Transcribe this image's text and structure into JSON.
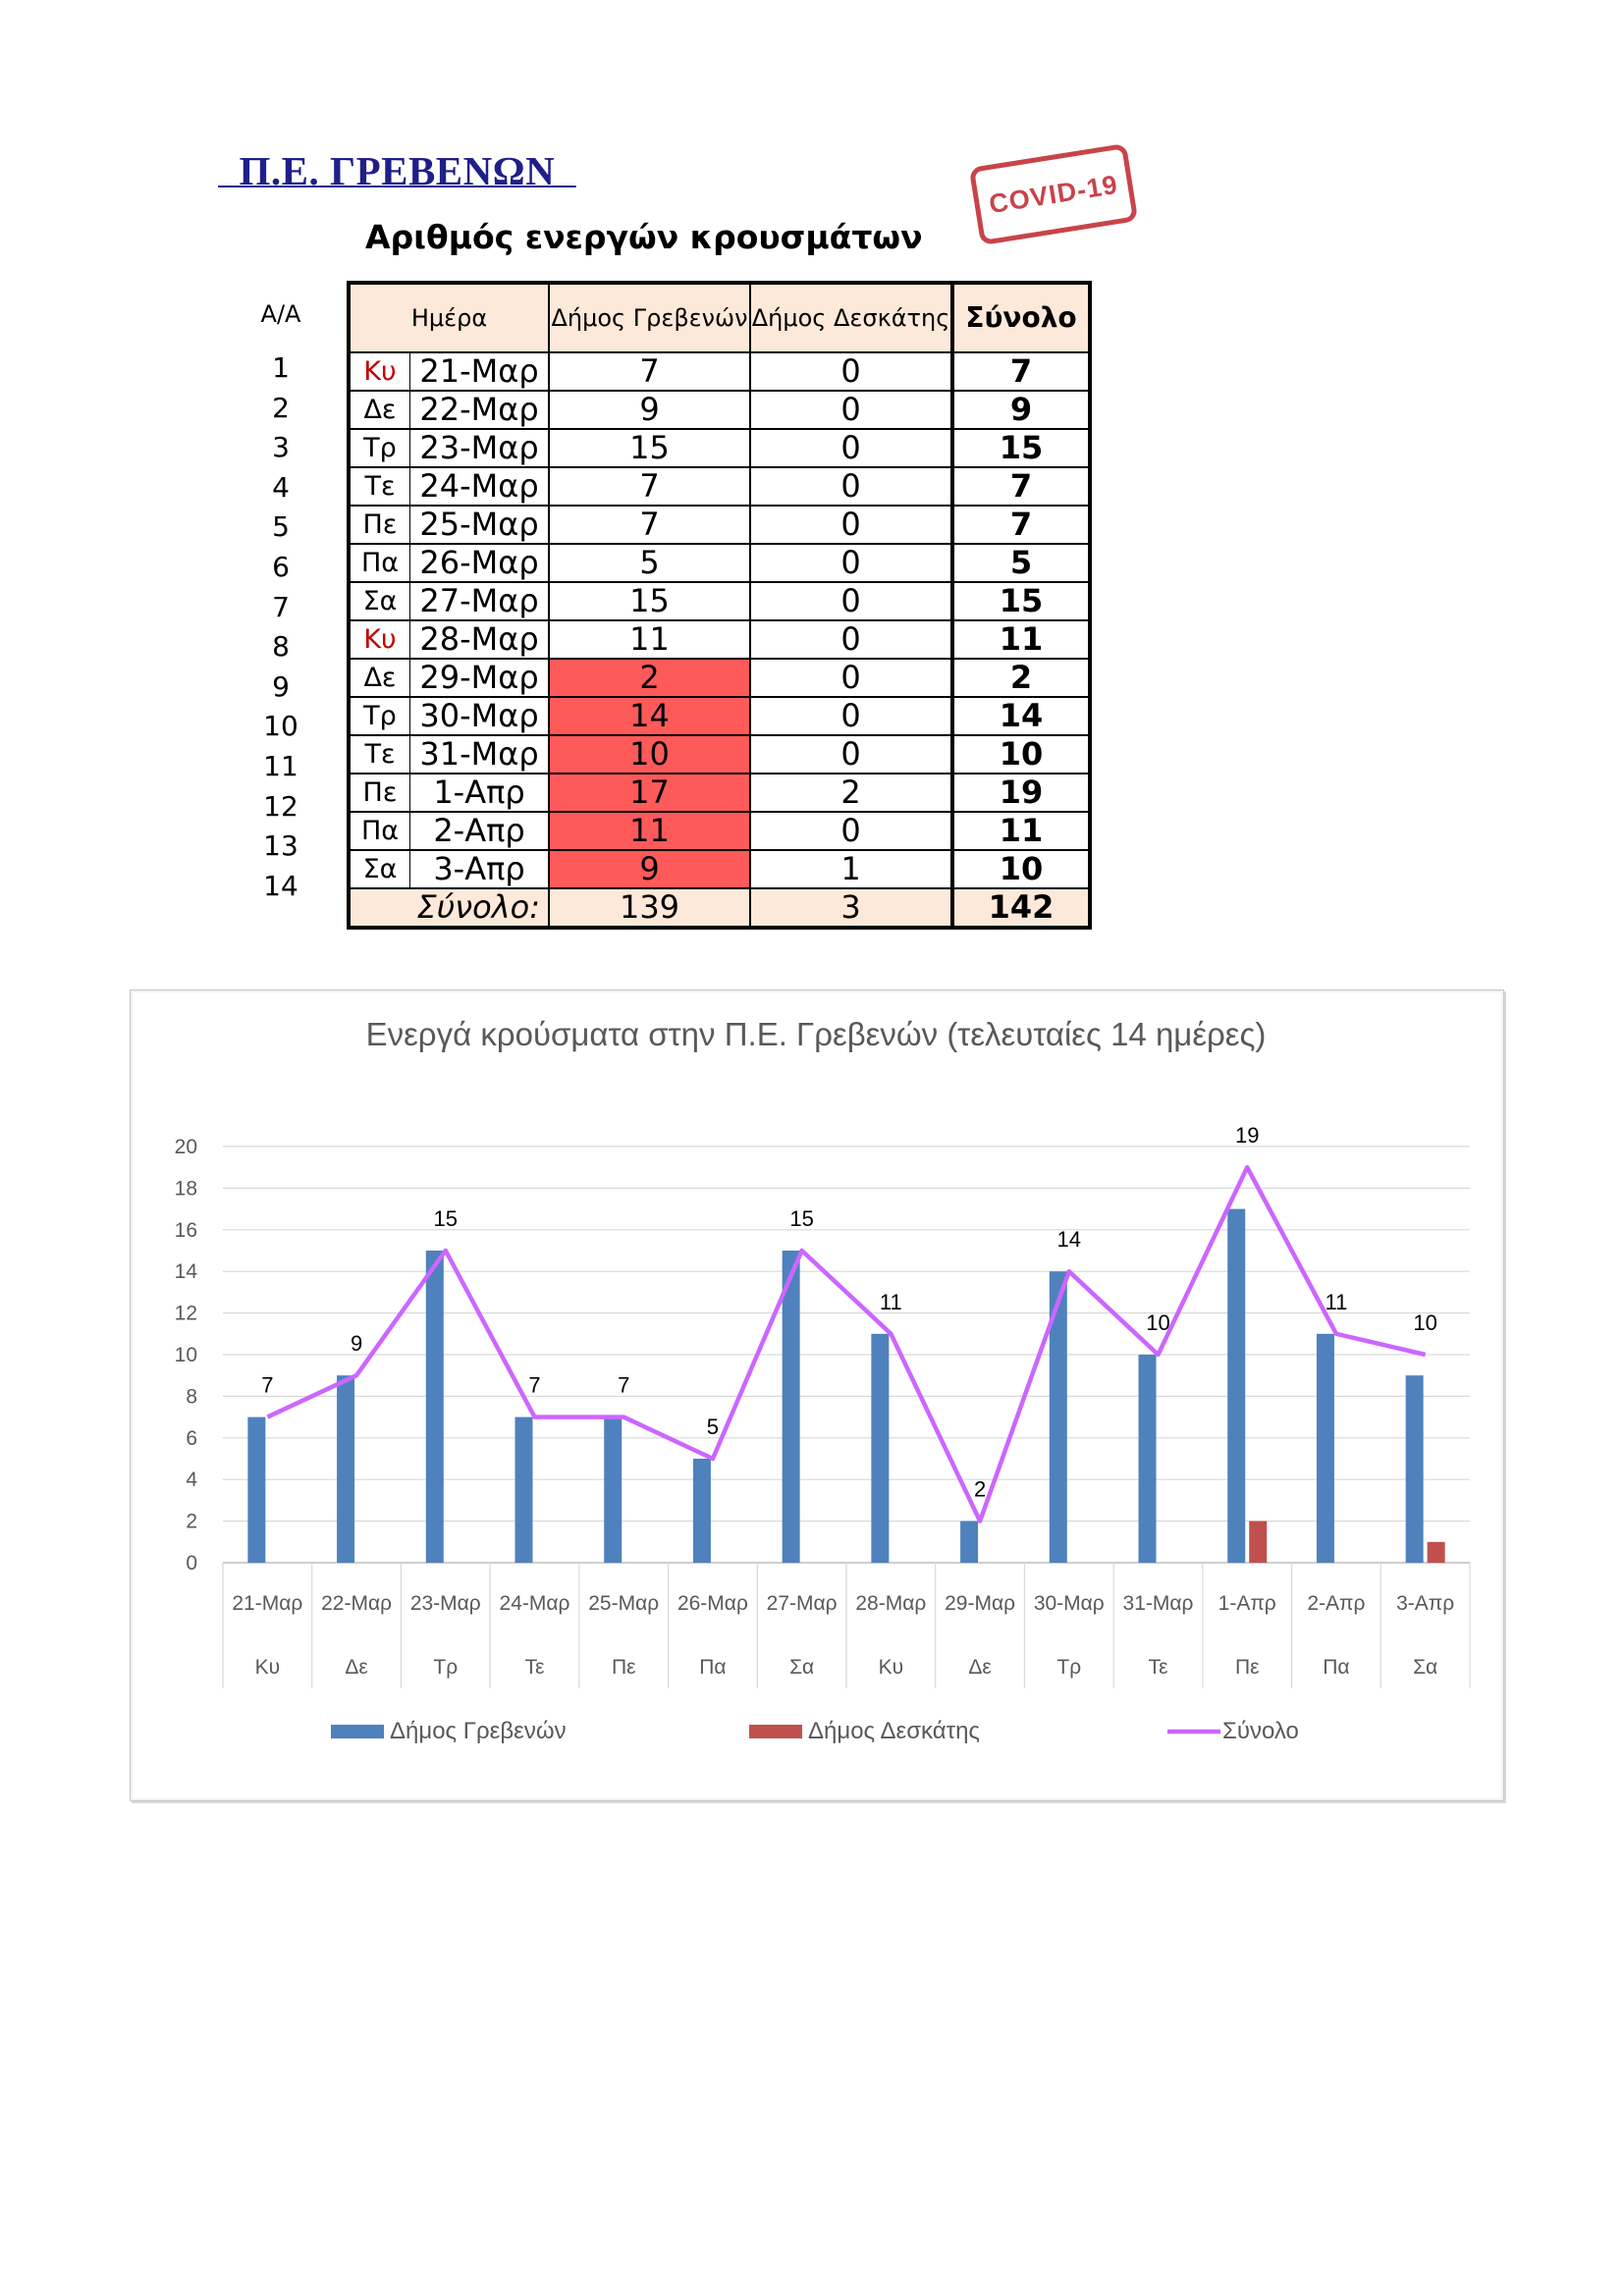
{
  "header": {
    "region": "  Π.Ε. ΓΡΕΒΕΝΩΝ  ",
    "stamp": "COVID-19",
    "table_title": "Αριθμός ενεργών κρουσμάτων"
  },
  "table": {
    "aa_header": "Α/Α",
    "col_day_header": "Ημέρα",
    "col_grevena_header": "Δήμος Γρεβενών",
    "col_deskati_header": "Δήμος Δεσκάτης",
    "col_total_header": "Σύνολο",
    "rows": [
      {
        "aa": "1",
        "day": "Κυ",
        "date": "21-Μαρ",
        "grevena": "7",
        "deskati": "0",
        "total": "7",
        "sunday": true,
        "highlight": false
      },
      {
        "aa": "2",
        "day": "Δε",
        "date": "22-Μαρ",
        "grevena": "9",
        "deskati": "0",
        "total": "9",
        "sunday": false,
        "highlight": false
      },
      {
        "aa": "3",
        "day": "Τρ",
        "date": "23-Μαρ",
        "grevena": "15",
        "deskati": "0",
        "total": "15",
        "sunday": false,
        "highlight": false
      },
      {
        "aa": "4",
        "day": "Τε",
        "date": "24-Μαρ",
        "grevena": "7",
        "deskati": "0",
        "total": "7",
        "sunday": false,
        "highlight": false
      },
      {
        "aa": "5",
        "day": "Πε",
        "date": "25-Μαρ",
        "grevena": "7",
        "deskati": "0",
        "total": "7",
        "sunday": false,
        "highlight": false
      },
      {
        "aa": "6",
        "day": "Πα",
        "date": "26-Μαρ",
        "grevena": "5",
        "deskati": "0",
        "total": "5",
        "sunday": false,
        "highlight": false
      },
      {
        "aa": "7",
        "day": "Σα",
        "date": "27-Μαρ",
        "grevena": "15",
        "deskati": "0",
        "total": "15",
        "sunday": false,
        "highlight": false
      },
      {
        "aa": "8",
        "day": "Κυ",
        "date": "28-Μαρ",
        "grevena": "11",
        "deskati": "0",
        "total": "11",
        "sunday": true,
        "highlight": false
      },
      {
        "aa": "9",
        "day": "Δε",
        "date": "29-Μαρ",
        "grevena": "2",
        "deskati": "0",
        "total": "2",
        "sunday": false,
        "highlight": true
      },
      {
        "aa": "10",
        "day": "Τρ",
        "date": "30-Μαρ",
        "grevena": "14",
        "deskati": "0",
        "total": "14",
        "sunday": false,
        "highlight": true
      },
      {
        "aa": "11",
        "day": "Τε",
        "date": "31-Μαρ",
        "grevena": "10",
        "deskati": "0",
        "total": "10",
        "sunday": false,
        "highlight": true
      },
      {
        "aa": "12",
        "day": "Πε",
        "date": "1-Απρ",
        "grevena": "17",
        "deskati": "2",
        "total": "19",
        "sunday": false,
        "highlight": true
      },
      {
        "aa": "13",
        "day": "Πα",
        "date": "2-Απρ",
        "grevena": "11",
        "deskati": "0",
        "total": "11",
        "sunday": false,
        "highlight": true
      },
      {
        "aa": "14",
        "day": "Σα",
        "date": "3-Απρ",
        "grevena": "9",
        "deskati": "1",
        "total": "10",
        "sunday": false,
        "highlight": true
      }
    ],
    "sum_label": "Σύνολο:",
    "sum_grevena": "139",
    "sum_deskati": "3",
    "sum_total": "142"
  },
  "colors": {
    "bar_grevena": "#4f81bd",
    "bar_deskati": "#c0504d",
    "line_total": "#cc66ff",
    "highlight_cell": "#ff5a5a",
    "header_fill": "#fde9d9",
    "sunday_text": "#c00000",
    "title_color": "#1f1f8a"
  },
  "chart_data": {
    "type": "bar",
    "title": "Ενεργά κρούσματα στην Π.Ε. Γρεβενών (τελευταίες 14 ημέρες)",
    "categories": [
      "21-Μαρ",
      "22-Μαρ",
      "23-Μαρ",
      "24-Μαρ",
      "25-Μαρ",
      "26-Μαρ",
      "27-Μαρ",
      "28-Μαρ",
      "29-Μαρ",
      "30-Μαρ",
      "31-Μαρ",
      "1-Απρ",
      "2-Απρ",
      "3-Απρ"
    ],
    "category_days": [
      "Κυ",
      "Δε",
      "Τρ",
      "Τε",
      "Πε",
      "Πα",
      "Σα",
      "Κυ",
      "Δε",
      "Τρ",
      "Τε",
      "Πε",
      "Πα",
      "Σα"
    ],
    "series": [
      {
        "name": "Δήμος Γρεβενών",
        "kind": "bar",
        "values": [
          7,
          9,
          15,
          7,
          7,
          5,
          15,
          11,
          2,
          14,
          10,
          17,
          11,
          9
        ]
      },
      {
        "name": "Δήμος Δεσκάτης",
        "kind": "bar",
        "values": [
          0,
          0,
          0,
          0,
          0,
          0,
          0,
          0,
          0,
          0,
          0,
          2,
          0,
          1
        ]
      },
      {
        "name": "Σύνολο",
        "kind": "line",
        "values": [
          7,
          9,
          15,
          7,
          7,
          5,
          15,
          11,
          2,
          14,
          10,
          19,
          11,
          10
        ],
        "data_labels": true
      }
    ],
    "ylim": [
      0,
      20
    ],
    "yticks": [
      0,
      2,
      4,
      6,
      8,
      10,
      12,
      14,
      16,
      18,
      20
    ],
    "grid": true,
    "legend": "bottom"
  }
}
